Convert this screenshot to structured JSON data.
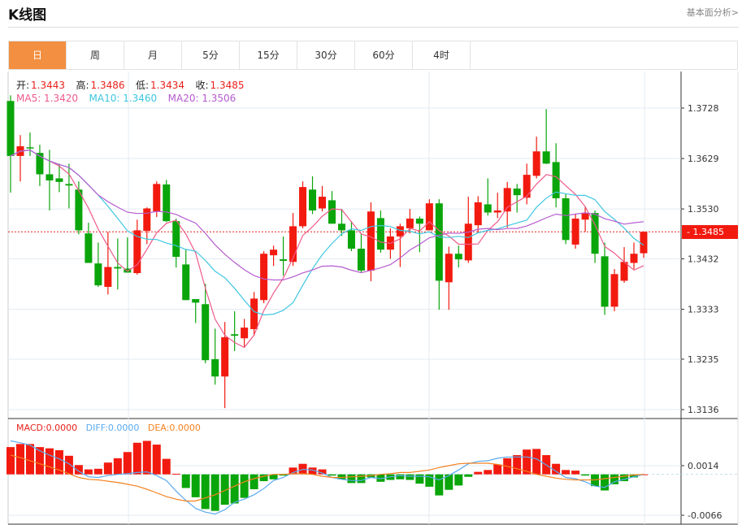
{
  "header": {
    "title": "K线图",
    "fundamental_link": "基本面分析>"
  },
  "tabs": [
    {
      "label": "日",
      "active": true
    },
    {
      "label": "周",
      "active": false
    },
    {
      "label": "月",
      "active": false
    },
    {
      "label": "5分",
      "active": false
    },
    {
      "label": "15分",
      "active": false
    },
    {
      "label": "30分",
      "active": false
    },
    {
      "label": "60分",
      "active": false
    },
    {
      "label": "4时",
      "active": false
    }
  ],
  "ohlc": {
    "open_label": "开:",
    "open": "1.3443",
    "high_label": "高:",
    "high": "1.3486",
    "low_label": "低:",
    "low": "1.3434",
    "close_label": "收:",
    "close": "1.3485"
  },
  "ma": {
    "ma5_label": "MA5: 1.3420",
    "ma10_label": "MA10: 1.3460",
    "ma20_label": "MA20: 1.3506"
  },
  "macd_info": {
    "macd_label": "MACD:0.0000",
    "diff_label": "DIFF:0.0000",
    "dea_label": "DEA:0.0000"
  },
  "last_price": "1.3485",
  "colors": {
    "up": "#f21a0f",
    "down": "#0aa50a",
    "ma5": "#ee5a8a",
    "ma10": "#3fc7e0",
    "ma20": "#b65bd0",
    "diff": "#5aaaf0",
    "dea": "#f58220",
    "accent": "#f28f40"
  },
  "chart_data": {
    "type": "candlestick",
    "price_axis": {
      "ticks": [
        "1.3728",
        "1.3629",
        "1.3530",
        "1.3432",
        "1.3333",
        "1.3235",
        "1.3136"
      ],
      "range": [
        1.3136,
        1.3728
      ]
    },
    "macd_axis": {
      "ticks": [
        "0.0014",
        "-0.0066"
      ],
      "range": [
        -0.0066,
        0.0014
      ]
    },
    "candles": [
      [
        1.3742,
        1.3753,
        1.3562,
        1.3634
      ],
      [
        1.3634,
        1.3675,
        1.3584,
        1.3653
      ],
      [
        1.3651,
        1.368,
        1.3634,
        1.365
      ],
      [
        1.364,
        1.3656,
        1.3575,
        1.3598
      ],
      [
        1.3598,
        1.3646,
        1.3527,
        1.3586
      ],
      [
        1.359,
        1.3619,
        1.3563,
        1.3583
      ],
      [
        1.3579,
        1.3619,
        1.3531,
        1.3576
      ],
      [
        1.3568,
        1.3584,
        1.348,
        1.3488
      ],
      [
        1.3482,
        1.3503,
        1.3424,
        1.3424
      ],
      [
        1.3423,
        1.3464,
        1.3377,
        1.338
      ],
      [
        1.3377,
        1.3485,
        1.3362,
        1.3416
      ],
      [
        1.3416,
        1.3472,
        1.3372,
        1.3413
      ],
      [
        1.3413,
        1.3474,
        1.3405,
        1.3405
      ],
      [
        1.3404,
        1.3509,
        1.3401,
        1.3488
      ],
      [
        1.3487,
        1.3533,
        1.3461,
        1.3531
      ],
      [
        1.3525,
        1.3584,
        1.3514,
        1.3579
      ],
      [
        1.3578,
        1.3587,
        1.3504,
        1.3506
      ],
      [
        1.3506,
        1.3511,
        1.3415,
        1.3436
      ],
      [
        1.3421,
        1.345,
        1.3351,
        1.3351
      ],
      [
        1.3353,
        1.3353,
        1.3306,
        1.3346
      ],
      [
        1.3343,
        1.3383,
        1.3227,
        1.3233
      ],
      [
        1.3235,
        1.3295,
        1.3185,
        1.3201
      ],
      [
        1.3201,
        1.3308,
        1.3139,
        1.3278
      ],
      [
        1.3284,
        1.3329,
        1.3251,
        1.3281
      ],
      [
        1.3276,
        1.3314,
        1.3259,
        1.3297
      ],
      [
        1.3294,
        1.3367,
        1.3281,
        1.3354
      ],
      [
        1.3351,
        1.3447,
        1.3345,
        1.3442
      ],
      [
        1.3439,
        1.3458,
        1.3418,
        1.345
      ],
      [
        1.3431,
        1.3476,
        1.3399,
        1.3428
      ],
      [
        1.3426,
        1.3522,
        1.3418,
        1.3496
      ],
      [
        1.3496,
        1.3584,
        1.3492,
        1.3573
      ],
      [
        1.3568,
        1.3594,
        1.352,
        1.3527
      ],
      [
        1.3531,
        1.3575,
        1.3525,
        1.3554
      ],
      [
        1.3547,
        1.3565,
        1.3501,
        1.3501
      ],
      [
        1.3501,
        1.353,
        1.3477,
        1.3488
      ],
      [
        1.3488,
        1.3506,
        1.3447,
        1.3452
      ],
      [
        1.3452,
        1.3482,
        1.3405,
        1.3409
      ],
      [
        1.3409,
        1.3543,
        1.3388,
        1.3525
      ],
      [
        1.3512,
        1.3527,
        1.3444,
        1.345
      ],
      [
        1.345,
        1.3492,
        1.3432,
        1.3476
      ],
      [
        1.3476,
        1.3501,
        1.3416,
        1.3496
      ],
      [
        1.3492,
        1.353,
        1.3482,
        1.3511
      ],
      [
        1.3511,
        1.3515,
        1.3445,
        1.3501
      ],
      [
        1.3488,
        1.3549,
        1.3488,
        1.3541
      ],
      [
        1.3541,
        1.3549,
        1.3332,
        1.3389
      ],
      [
        1.3386,
        1.3456,
        1.3332,
        1.3442
      ],
      [
        1.3442,
        1.3458,
        1.3415,
        1.3431
      ],
      [
        1.3429,
        1.3554,
        1.3424,
        1.3501
      ],
      [
        1.3498,
        1.3555,
        1.3482,
        1.3543
      ],
      [
        1.3539,
        1.359,
        1.3517,
        1.3523
      ],
      [
        1.3523,
        1.3562,
        1.3512,
        1.3527
      ],
      [
        1.3525,
        1.3583,
        1.3493,
        1.3571
      ],
      [
        1.357,
        1.3579,
        1.3523,
        1.3557
      ],
      [
        1.3552,
        1.3619,
        1.3539,
        1.3597
      ],
      [
        1.3595,
        1.3672,
        1.359,
        1.3643
      ],
      [
        1.3643,
        1.3726,
        1.3618,
        1.3619
      ],
      [
        1.3622,
        1.3659,
        1.3533,
        1.3551
      ],
      [
        1.3551,
        1.3559,
        1.3461,
        1.3469
      ],
      [
        1.346,
        1.352,
        1.3452,
        1.3511
      ],
      [
        1.3509,
        1.3535,
        1.3485,
        1.3522
      ],
      [
        1.3522,
        1.3527,
        1.3424,
        1.3442
      ],
      [
        1.3437,
        1.3464,
        1.3322,
        1.3338
      ],
      [
        1.3338,
        1.3412,
        1.3329,
        1.3402
      ],
      [
        1.3389,
        1.3455,
        1.3385,
        1.3426
      ],
      [
        1.3424,
        1.3464,
        1.3412,
        1.3442
      ],
      [
        1.3443,
        1.3486,
        1.3434,
        1.3485
      ]
    ],
    "macd_hist": [
      0.0044,
      0.0049,
      0.0049,
      0.0044,
      0.0042,
      0.0039,
      0.003,
      0.0015,
      0.0008,
      0.0009,
      0.0019,
      0.0026,
      0.0036,
      0.0051,
      0.0054,
      0.0048,
      0.0025,
      0.0001,
      -0.0022,
      -0.0037,
      -0.0056,
      -0.0059,
      -0.0049,
      -0.0047,
      -0.0038,
      -0.0024,
      -0.0011,
      -0.0008,
      -0.0002,
      0.0011,
      0.0017,
      0.0011,
      0.0008,
      -0.0002,
      -0.0008,
      -0.0014,
      -0.0014,
      -0.0005,
      -0.0012,
      -0.0009,
      -0.0008,
      -0.0009,
      -0.0015,
      -0.002,
      -0.0034,
      -0.0025,
      -0.0018,
      -0.0004,
      0.0004,
      0.0007,
      0.0016,
      0.0026,
      0.0031,
      0.004,
      0.0041,
      0.0031,
      0.0017,
      0.0007,
      0.0006,
      -0.0002,
      -0.0019,
      -0.0026,
      -0.0016,
      -0.0011,
      -0.0005,
      0.0
    ],
    "diff": [
      0.0054,
      0.0051,
      0.0047,
      0.0038,
      0.0031,
      0.0025,
      0.0017,
      0.0005,
      -0.0004,
      -0.0005,
      -0.0002,
      0.0,
      0.0001,
      0.0003,
      0.0004,
      -0.0002,
      -0.001,
      -0.0027,
      -0.0042,
      -0.0055,
      -0.0061,
      -0.0064,
      -0.0057,
      -0.0045,
      -0.004,
      -0.0033,
      -0.0023,
      -0.001,
      -0.0005,
      0.0003,
      0.0008,
      0.0007,
      0.0002,
      -0.0005,
      -0.0008,
      -0.001,
      -0.001,
      -0.0005,
      -0.0007,
      -0.0004,
      -0.0002,
      -0.0003,
      -0.0003,
      -0.0004,
      -0.0009,
      -0.0002,
      0.0007,
      0.0017,
      0.0021,
      0.0022,
      0.0026,
      0.0028,
      0.0028,
      0.0028,
      0.0025,
      0.0015,
      0.0005,
      -0.0005,
      -0.0007,
      -0.0012,
      -0.0019,
      -0.0021,
      -0.0012,
      -0.0008,
      -0.0004,
      0.0
    ],
    "dea": [
      0.0031,
      0.0027,
      0.0022,
      0.0017,
      0.0012,
      0.0007,
      0.0001,
      -0.0005,
      -0.0008,
      -0.0009,
      -0.0011,
      -0.0013,
      -0.0016,
      -0.0019,
      -0.0024,
      -0.003,
      -0.0036,
      -0.004,
      -0.0043,
      -0.0043,
      -0.0038,
      -0.0033,
      -0.0026,
      -0.0019,
      -0.0012,
      -0.0007,
      -0.0003,
      0.0,
      0.0,
      0.0001,
      0.0001,
      0.0,
      -0.0003,
      -0.0005,
      -0.0005,
      -0.0004,
      -0.0003,
      -0.0002,
      0.0,
      0.0001,
      0.0003,
      0.0003,
      0.0005,
      0.0007,
      0.0011,
      0.0014,
      0.0017,
      0.0018,
      0.0018,
      0.0018,
      0.0016,
      0.0013,
      0.0009,
      0.0005,
      0.0,
      -0.0003,
      -0.0006,
      -0.0008,
      -0.0009,
      -0.0009,
      -0.0009,
      -0.0007,
      -0.0005,
      -0.0003,
      -0.0001,
      0.0
    ]
  }
}
